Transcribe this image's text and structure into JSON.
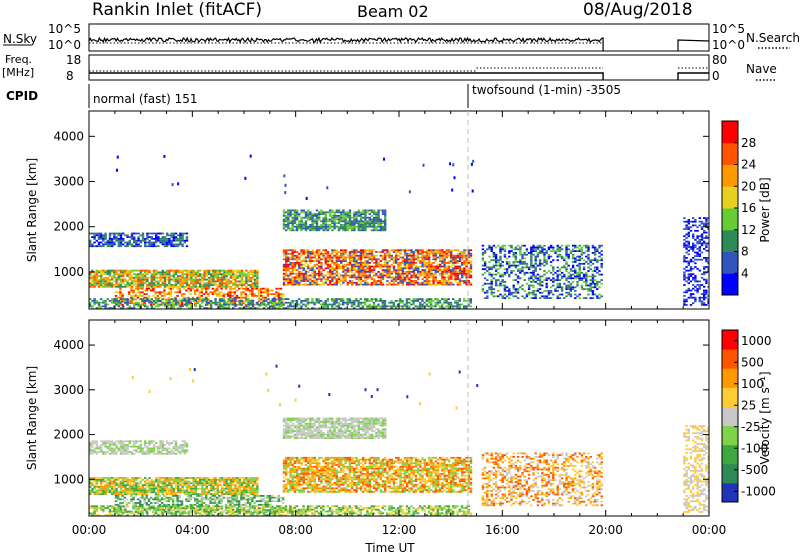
{
  "header": {
    "station": "Rankin Inlet (fitACF)",
    "beam": "Beam 02",
    "date": "08/Aug/2018"
  },
  "nsky_panel": {
    "left_label": "N.Sky",
    "left_ticks": [
      "10^5",
      "10^0"
    ],
    "right_ticks": [
      "10^5",
      "10^0"
    ],
    "right_label": "N.Search"
  },
  "freq_panel": {
    "left_label_1": "Freq.",
    "left_label_2": "[MHz]",
    "left_ticks": [
      "18",
      "8"
    ],
    "right_ticks": [
      "80",
      "0"
    ],
    "right_label": "Nave"
  },
  "cpid_panel": {
    "label": "CPID",
    "modes": [
      {
        "name": "normal (fast) 151",
        "start_hour": 0
      },
      {
        "name": "twofsound (1-min) -3505",
        "start_hour": 15
      }
    ]
  },
  "chart_data": [
    {
      "type": "heatmap",
      "panel": "power",
      "ylabel": "Slant Range [km]",
      "yticks": [
        "1000",
        "2000",
        "3000",
        "4000"
      ],
      "ylim": [
        180,
        4560
      ],
      "xlim": [
        0,
        24
      ],
      "data_gap_hours": [
        19.9,
        22.8
      ],
      "colorbar_label": "Power [dB]",
      "colorbar_ticks": [
        "4",
        "8",
        "12",
        "16",
        "20",
        "24",
        "28"
      ],
      "colorbar_colors": [
        "#0000ff",
        "#3355bb",
        "#2e8b57",
        "#66cc33",
        "#e6d21e",
        "#ff9900",
        "#ff5500",
        "#ff0000"
      ]
    },
    {
      "type": "heatmap",
      "panel": "velocity",
      "ylabel": "Slant Range [km]",
      "yticks": [
        "1000",
        "2000",
        "3000",
        "4000"
      ],
      "ylim": [
        180,
        4560
      ],
      "xlim": [
        0,
        24
      ],
      "data_gap_hours": [
        19.9,
        22.8
      ],
      "colorbar_label": "Velocity [m s⁻¹]",
      "colorbar_ticks": [
        "1000",
        "500",
        "100",
        "25",
        "-25",
        "-100",
        "-500",
        "-1000"
      ],
      "colorbar_colors": [
        "#2233bb",
        "#2e8b57",
        "#3ea840",
        "#7fd24a",
        "#c8c8c8",
        "#ffcc33",
        "#ff9900",
        "#ff5500",
        "#ff0000"
      ]
    }
  ],
  "xaxis": {
    "ticks": [
      "00:00",
      "04:00",
      "08:00",
      "12:00",
      "16:00",
      "20:00",
      "00:00"
    ],
    "label": "Time UT"
  }
}
